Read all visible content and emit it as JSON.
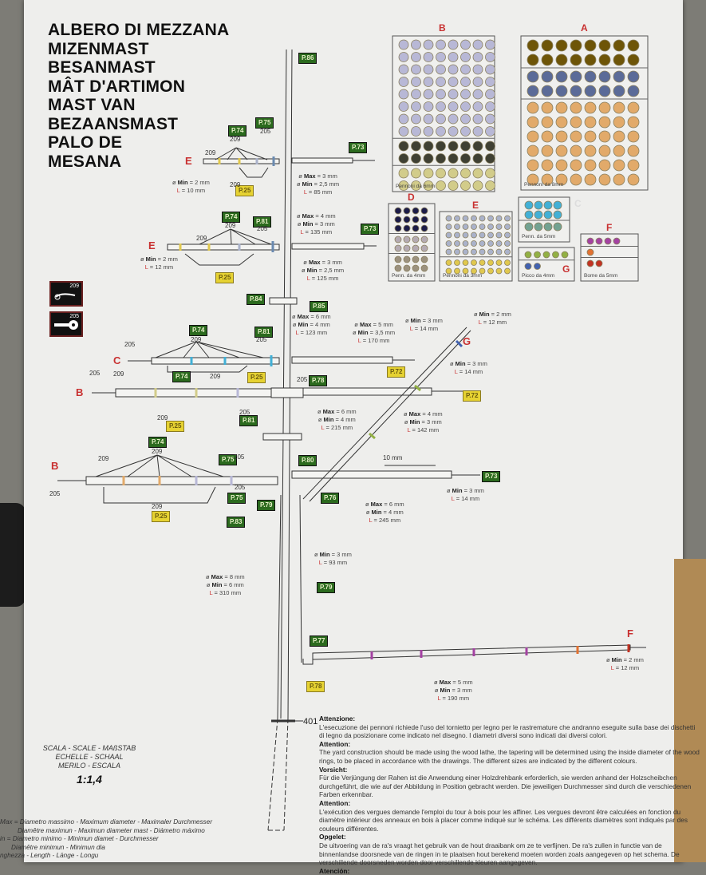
{
  "title_lines": [
    "ALBERO DI MEZZANA",
    "MIZENMAST",
    "BESANMAST",
    "MÂT D'ARTIMON",
    "MAST VAN",
    "BEZAANSMAST",
    "PALO DE",
    "MESANA"
  ],
  "icons": [
    {
      "number": "209",
      "icon": "hook-icon"
    },
    {
      "number": "205",
      "icon": "eyelet-icon"
    }
  ],
  "colors": {
    "tag_green": "#2b6a1e",
    "tag_yellow": "#e6d232",
    "letter_red": "#c83030"
  },
  "tags": [
    {
      "text": "P.86",
      "kind": "green"
    },
    {
      "text": "P.74",
      "kind": "green"
    },
    {
      "text": "P.75",
      "kind": "green"
    },
    {
      "text": "P.73",
      "kind": "green"
    },
    {
      "text": "P.25",
      "kind": "yellow"
    },
    {
      "text": "P.74",
      "kind": "green"
    },
    {
      "text": "P.81",
      "kind": "green"
    },
    {
      "text": "P.73",
      "kind": "green"
    },
    {
      "text": "P.25",
      "kind": "yellow"
    },
    {
      "text": "P.84",
      "kind": "green"
    },
    {
      "text": "P.85",
      "kind": "green"
    },
    {
      "text": "P.74",
      "kind": "green"
    },
    {
      "text": "P.81",
      "kind": "green"
    },
    {
      "text": "P.25",
      "kind": "yellow"
    },
    {
      "text": "P.72",
      "kind": "yellow"
    },
    {
      "text": "P.74",
      "kind": "green"
    },
    {
      "text": "P.78",
      "kind": "green"
    },
    {
      "text": "P.72",
      "kind": "yellow"
    },
    {
      "text": "P.81",
      "kind": "green"
    },
    {
      "text": "P.25",
      "kind": "yellow"
    },
    {
      "text": "P.74",
      "kind": "green"
    },
    {
      "text": "P.75",
      "kind": "green"
    },
    {
      "text": "P.80",
      "kind": "green"
    },
    {
      "text": "P.73",
      "kind": "green"
    },
    {
      "text": "P.75",
      "kind": "green"
    },
    {
      "text": "P.79",
      "kind": "green"
    },
    {
      "text": "P.76",
      "kind": "green"
    },
    {
      "text": "P.83",
      "kind": "green"
    },
    {
      "text": "P.25",
      "kind": "yellow"
    },
    {
      "text": "P.79",
      "kind": "green"
    },
    {
      "text": "P.77",
      "kind": "green"
    },
    {
      "text": "P.78",
      "kind": "yellow"
    }
  ],
  "part_numbers": [
    "209",
    "209",
    "205",
    "209",
    "209",
    "209",
    "205",
    "205",
    "209",
    "205",
    "209",
    "205",
    "209",
    "209",
    "205",
    "205",
    "209",
    "209",
    "205",
    "205",
    "205",
    "209",
    "401"
  ],
  "yard_letters": [
    "E",
    "E",
    "C",
    "B",
    "B",
    "G",
    "F"
  ],
  "dim_keys": {
    "max": "Max",
    "min": "Min",
    "length": "L",
    "diam": "ø"
  },
  "dimensions": [
    {
      "max": "3 mm",
      "min": "2,5 mm",
      "length": "85 mm"
    },
    {
      "min": "2 mm",
      "length": "10 mm"
    },
    {
      "max": "4 mm",
      "min": "3 mm",
      "length": "135 mm"
    },
    {
      "min": "2 mm",
      "length": "12 mm"
    },
    {
      "max": "3 mm",
      "min": "2,5 mm",
      "length": "125 mm"
    },
    {
      "max": "6 mm",
      "min": "4 mm",
      "length": "123 mm"
    },
    {
      "max": "5 mm",
      "min": "3,5 mm",
      "length": "170 mm"
    },
    {
      "min": "3 mm",
      "length": "14 mm"
    },
    {
      "min": "2 mm",
      "length": "12 mm"
    },
    {
      "min": "3 mm",
      "length": "14 mm"
    },
    {
      "max": "6 mm",
      "min": "4 mm",
      "length": "215 mm"
    },
    {
      "max": "4 mm",
      "min": "3 mm",
      "length": "142 mm"
    },
    {
      "max": "6 mm",
      "min": "4 mm",
      "length": "245 mm"
    },
    {
      "min": "3 mm",
      "length": "14 mm"
    },
    {
      "min": "3 mm",
      "length": "93 mm"
    },
    {
      "max": "8 mm",
      "min": "6 mm",
      "length": "310 mm"
    },
    {
      "max": "5 mm",
      "min": "3 mm",
      "length": "190 mm"
    },
    {
      "min": "2 mm",
      "length": "12 mm"
    }
  ],
  "spacing_label": "10 mm",
  "ring_boxes": [
    {
      "letter": "B",
      "label": "Pennoni da 6mm",
      "groups": [
        {
          "rows": 8,
          "cols": 8,
          "color": "#b8b8d6"
        },
        {
          "rows": 2,
          "cols": 8,
          "color": "#3f4033"
        },
        {
          "rows": 2,
          "cols": 8,
          "color": "#d2cc8a"
        }
      ]
    },
    {
      "letter": "A",
      "label": "Pennoni da 8mm",
      "groups": [
        {
          "rows": 2,
          "cols": 8,
          "color": "#6e5508"
        },
        {
          "rows": 2,
          "cols": 8,
          "color": "#5b6b98"
        },
        {
          "rows": 6,
          "cols": 8,
          "color": "#e2aa6a"
        }
      ]
    },
    {
      "letter": "D",
      "label": "Penn. da 4mm",
      "groups": [
        {
          "rows": 3,
          "cols": 4,
          "color": "#1c1c48"
        },
        {
          "rows": 2,
          "cols": 4,
          "color": "#b4aab2"
        },
        {
          "rows": 2,
          "cols": 4,
          "color": "#9c927f"
        }
      ]
    },
    {
      "letter": "E",
      "label": "Pennoni da 3mm",
      "groups": [
        {
          "rows": 5,
          "cols": 8,
          "color": "#aab2ca"
        },
        {
          "rows": 2,
          "cols": 8,
          "color": "#e0c84e"
        }
      ]
    },
    {
      "letter": "C",
      "label": "Penn. da 5mm",
      "groups": [
        {
          "rows": 2,
          "cols": 4,
          "color": "#42b0d6"
        },
        {
          "rows": 1,
          "cols": 4,
          "color": "#72a292"
        }
      ]
    },
    {
      "letter": "G",
      "label": "Picco da 4mm",
      "groups": [
        {
          "rows": 1,
          "cols": 5,
          "color": "#92b044"
        },
        {
          "rows": 1,
          "cols": 2,
          "color": "#4262b0"
        }
      ]
    },
    {
      "letter": "F",
      "label": "Bome da 5mm",
      "groups": [
        {
          "rows": 1,
          "cols": 4,
          "color": "#a442a2"
        },
        {
          "rows": 1,
          "cols": 1,
          "color": "#e27232"
        },
        {
          "rows": 1,
          "cols": 2,
          "color": "#c23222"
        }
      ]
    }
  ],
  "scale": {
    "line1": "SCALA - SCALE - MAßSTAB",
    "line2": "ECHELLE - SCHAAL",
    "line3": "MERILO - ESCALA",
    "ratio": "1:1,4"
  },
  "legend_lines": [
    "Max = Diametro massimo - Maximum diameter - Maximaler Durchmesser",
    "Diamêtre maximun - Maximun diameter mast - Diámetro máximo",
    "in = Diametro minimo - Minimun diamet          - Durchmesser",
    "Diamêtre minimun - Minimun dia",
    "nghezza - Length - Länge - Longu"
  ],
  "notes": [
    {
      "heading": "Attenzione:",
      "text": "L'esecuzione dei pennoni richiede l'uso del tornietto per legno per le rastremature che andranno eseguite sulla base dei dischetti di legno da posizionare come indicato nel disegno. I diametri diversi sono indicati dai diversi colori."
    },
    {
      "heading": "Attention:",
      "text": "The yard construction should be made using the wood lathe, the tapering will be determined using the inside diameter of the wood rings, to be placed in accordance with the drawings. The different sizes are indicated by the different colours."
    },
    {
      "heading": "Vorsicht:",
      "text": "Für die Verjüngung der Rahen ist die Anwendung einer Holzdrehbank erforderlich, sie werden anhand der Holzscheibchen durchgeführt, die wie auf der Abbildung in Position gebracht werden. Die jeweiligen Durchmesser sind durch die verschiedenen Farben erkennbar."
    },
    {
      "heading": "Attention:",
      "text": "L'exécution des vergues demande l'emploi du tour à bois pour les affiner. Les vergues devront être calculées en fonction du diamètre intérieur des anneaux en bois à placer comme indiqué sur le schéma. Les différents diamètres sont indiqués par des couleurs différentes."
    },
    {
      "heading": "Opgelet:",
      "text": "De uitvoering van de ra's vraagt het gebruik van de hout draaibank om ze te verfijnen. De ra's zullen in functie van de binnenlandse doorsnede van de ringen in te plaatsen hout berekend moeten worden zoals aangegeven op het schema. De verschillende doorsneden worden door verschillende kleuren aangegeven."
    },
    {
      "heading": "Atención:",
      "text": ""
    }
  ]
}
